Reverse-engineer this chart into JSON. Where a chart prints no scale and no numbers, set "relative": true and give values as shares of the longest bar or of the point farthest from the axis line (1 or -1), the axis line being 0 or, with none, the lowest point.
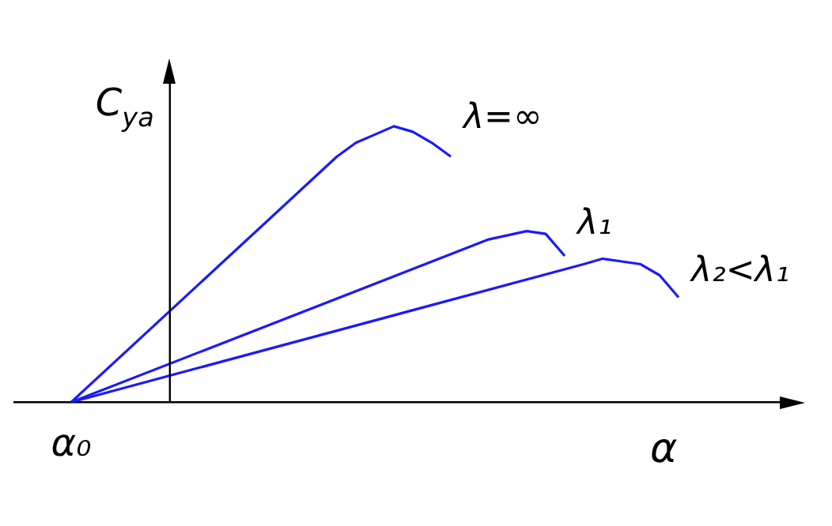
{
  "chart_data": {
    "type": "line",
    "relative": true,
    "grid": false,
    "legend": false,
    "marker": "none",
    "line_style": "solid",
    "xlabel": "α",
    "ylabel": "C$_{ya}$",
    "annotations": [
      "α₀"
    ],
    "categories": [
      null,
      null,
      null,
      null,
      null,
      null,
      null,
      null,
      null,
      null,
      null,
      null,
      null,
      null,
      null,
      null,
      null,
      null,
      null,
      null,
      null,
      null,
      null,
      null,
      null,
      null,
      null,
      null,
      null,
      null,
      null,
      null,
      null,
      null,
      null,
      null,
      null,
      null,
      null,
      null,
      null,
      null
    ],
    "series": [
      {
        "name": "λ=∞",
        "color": "#1a1aff",
        "values": [
          null,
          null,
          null,
          0,
          null,
          null,
          null,
          null,
          null,
          null,
          null,
          null,
          null,
          null,
          null,
          null,
          null,
          0.89,
          0.94,
          0.97,
          1,
          0.98,
          0.94,
          0.89,
          null,
          null,
          null,
          null,
          null,
          null,
          null,
          null,
          null,
          null,
          null,
          null,
          null,
          null,
          null,
          null,
          null,
          null
        ]
      },
      {
        "name": "λ₁",
        "color": "#1a1aff",
        "values": [
          null,
          null,
          null,
          0,
          null,
          null,
          null,
          null,
          null,
          null,
          null,
          null,
          null,
          null,
          null,
          null,
          null,
          null,
          null,
          null,
          null,
          null,
          null,
          null,
          null,
          0.59,
          null,
          0.62,
          0.61,
          0.53,
          null,
          null,
          null,
          null,
          null,
          null,
          null,
          null,
          null,
          null,
          null,
          null
        ]
      },
      {
        "name": "λ₂<λ₁",
        "color": "#1a1aff",
        "values": [
          null,
          null,
          null,
          0,
          null,
          null,
          null,
          null,
          null,
          null,
          null,
          null,
          null,
          null,
          null,
          null,
          null,
          null,
          null,
          null,
          null,
          null,
          null,
          null,
          null,
          null,
          null,
          null,
          null,
          null,
          0.5,
          0.52,
          0.51,
          0.5,
          0.46,
          0.38,
          null,
          null,
          null,
          null,
          null,
          null
        ]
      }
    ]
  }
}
